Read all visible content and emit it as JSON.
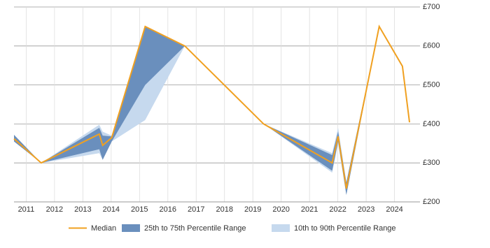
{
  "chart_data": {
    "type": "line",
    "x": [
      2010.57,
      2011.53,
      2013.58,
      2013.7,
      2014.02,
      2015.2,
      2016.6,
      2019.38,
      2021.8,
      2022.01,
      2022.3,
      2023.46,
      2024.28,
      2024.53
    ],
    "series": [
      {
        "name": "10th to 90th Percentile Range",
        "color": "#c6d9ee",
        "lower": [
          355,
          300,
          325,
          308,
          355,
          410,
          600,
          400,
          275,
          350,
          218,
          650,
          548,
          404
        ],
        "upper": [
          372,
          300,
          398,
          380,
          370,
          650,
          600,
          400,
          325,
          390,
          250,
          650,
          548,
          404
        ]
      },
      {
        "name": "25th to 75th Percentile Range",
        "color": "#6a8fbd",
        "lower": [
          355,
          300,
          335,
          308,
          355,
          500,
          600,
          400,
          280,
          355,
          218,
          650,
          548,
          404
        ],
        "upper": [
          372,
          300,
          390,
          370,
          368,
          650,
          600,
          400,
          320,
          380,
          250,
          650,
          548,
          404
        ]
      },
      {
        "name": "Median",
        "color": "#f0a020",
        "values": [
          362,
          300,
          374,
          345,
          365,
          650,
          600,
          400,
          300,
          368,
          234,
          650,
          548,
          404
        ]
      }
    ],
    "xlim": [
      2010.57,
      2024.9
    ],
    "xticks": [
      2011,
      2012,
      2013,
      2014,
      2015,
      2016,
      2017,
      2018,
      2019,
      2020,
      2021,
      2022,
      2023,
      2024
    ],
    "ylim": [
      200,
      700
    ],
    "yticks": [
      {
        "value": 200,
        "label": "£200"
      },
      {
        "value": 300,
        "label": "£300"
      },
      {
        "value": 400,
        "label": "£400"
      },
      {
        "value": 500,
        "label": "£500"
      },
      {
        "value": 600,
        "label": "£600"
      },
      {
        "value": 700,
        "label": "£700"
      }
    ],
    "grid": true
  }
}
